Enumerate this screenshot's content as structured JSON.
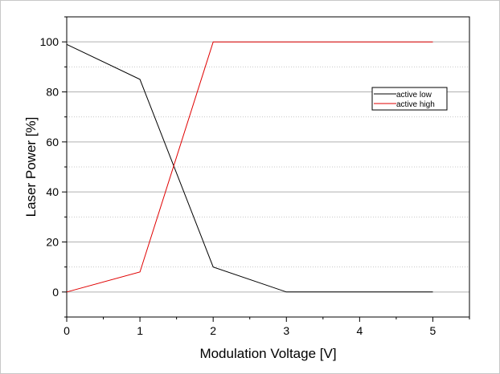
{
  "chart_data": {
    "type": "line",
    "title": "",
    "xlabel": "Modulation Voltage [V]",
    "ylabel": "Laser Power [%]",
    "xlim": [
      0,
      5.5
    ],
    "ylim": [
      -10,
      110
    ],
    "x_ticks": [
      "0",
      "1",
      "2",
      "3",
      "4",
      "5"
    ],
    "y_ticks": [
      "0",
      "20",
      "40",
      "60",
      "80",
      "100"
    ],
    "grid": "horizontal, dotted minor lines",
    "legend_position": "right, upper",
    "series": [
      {
        "name": "active low",
        "color": "#000000",
        "x": [
          0,
          1,
          2,
          3,
          4,
          5
        ],
        "y": [
          99,
          85,
          10,
          0,
          0,
          0
        ]
      },
      {
        "name": "active high",
        "color": "#e00000",
        "x": [
          0,
          1,
          2,
          3,
          4,
          5
        ],
        "y": [
          0,
          8,
          100,
          100,
          100,
          100
        ]
      }
    ]
  }
}
